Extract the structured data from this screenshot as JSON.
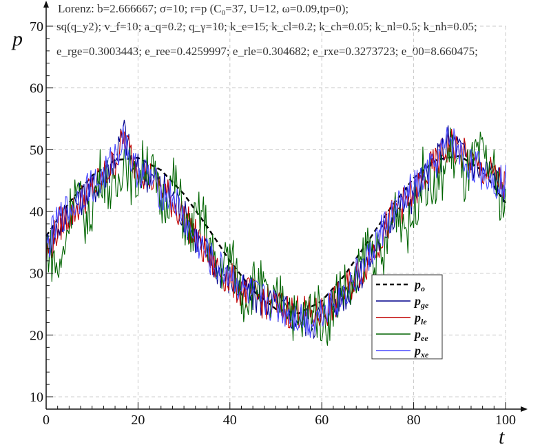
{
  "header": {
    "line1": "Lorenz: b=2.666667; σ=10; r=p (C",
    "line1_sub": "0",
    "line1_rest": "=37, U=12, ω=0.09,tp=0);",
    "line2": " sq(q_y2); v_f=10; a_q=0.2; q_γ=10; k_e=15; k_cl=0.2; k_ch=0.05; k_nl=0.5; k_nh=0.05;",
    "line3": "e_rge=0.3003443; e_ree=0.4259997; e_rle=0.304682; e_rxe=0.3273723; e_00=8.660475;"
  },
  "chart_data": {
    "type": "line",
    "title": "",
    "xlabel": "t",
    "ylabel": "p",
    "xlim": [
      0,
      100
    ],
    "ylim": [
      8,
      70
    ],
    "xticks": [
      0,
      20,
      40,
      60,
      80,
      100
    ],
    "yticks": [
      10,
      20,
      30,
      40,
      50,
      60,
      70
    ],
    "grid": true,
    "legend_position": "lower-right",
    "series": [
      {
        "name": "p_o",
        "color": "#000000",
        "style": "dashed",
        "x": [
          0,
          5,
          10,
          15,
          20,
          25,
          30,
          35,
          40,
          45,
          50,
          55,
          60,
          65,
          70,
          75,
          80,
          85,
          90,
          95,
          100
        ],
        "y": [
          36,
          41.4,
          45.8,
          48.3,
          48.7,
          46.7,
          42.8,
          37.6,
          32.0,
          27.2,
          24.2,
          23.5,
          25.5,
          29.7,
          35.1,
          40.6,
          45.4,
          48.4,
          49.0,
          46.6,
          41.4
        ]
      },
      {
        "name": "p_ge",
        "color": "#00008b",
        "style": "solid",
        "x": [
          0,
          3,
          6,
          9,
          12,
          15,
          17,
          19,
          22,
          25,
          28,
          31,
          34,
          37,
          40,
          43,
          46,
          49,
          52,
          55,
          58,
          61,
          64,
          67,
          70,
          73,
          76,
          79,
          82,
          85,
          88,
          91,
          94,
          97,
          100
        ],
        "y": [
          34,
          38,
          41,
          43,
          45,
          49,
          53,
          47,
          46,
          44,
          42,
          38,
          34,
          31,
          29,
          27,
          26,
          25,
          24,
          23,
          22,
          24,
          26,
          28,
          32,
          36,
          40,
          42,
          45,
          48,
          52,
          49,
          47,
          46,
          44
        ]
      },
      {
        "name": "p_le",
        "color": "#c00000",
        "style": "solid",
        "x": [
          0,
          3,
          6,
          9,
          12,
          15,
          17,
          19,
          22,
          25,
          28,
          31,
          34,
          37,
          40,
          43,
          46,
          49,
          52,
          55,
          58,
          61,
          64,
          67,
          70,
          73,
          76,
          79,
          82,
          85,
          88,
          91,
          94,
          97,
          100
        ],
        "y": [
          33,
          38,
          40,
          43,
          45,
          48,
          52,
          48,
          46,
          44,
          41,
          38,
          34,
          31,
          29,
          27,
          26,
          25,
          24,
          24,
          23,
          24,
          26,
          29,
          32,
          36,
          40,
          42,
          45,
          48,
          51,
          49,
          47,
          46,
          44
        ]
      },
      {
        "name": "p_ee",
        "color": "#006400",
        "style": "solid",
        "x": [
          0,
          3,
          6,
          9,
          12,
          15,
          17,
          19,
          22,
          25,
          28,
          31,
          34,
          37,
          40,
          43,
          46,
          49,
          52,
          55,
          58,
          61,
          64,
          67,
          70,
          73,
          76,
          79,
          82,
          85,
          88,
          91,
          94,
          97,
          100
        ],
        "y": [
          35,
          30,
          44,
          38,
          47,
          42,
          50,
          44,
          49,
          41,
          45,
          36,
          40,
          30,
          33,
          26,
          29,
          24,
          27,
          21,
          25,
          22,
          28,
          27,
          35,
          31,
          41,
          37,
          46,
          43,
          50,
          45,
          49,
          47,
          40
        ]
      },
      {
        "name": "p_xe",
        "color": "#4a4aff",
        "style": "solid",
        "x": [
          0,
          3,
          6,
          9,
          12,
          15,
          17,
          19,
          22,
          25,
          28,
          31,
          34,
          37,
          40,
          43,
          46,
          49,
          52,
          55,
          58,
          61,
          64,
          67,
          70,
          73,
          76,
          79,
          82,
          85,
          88,
          91,
          94,
          97,
          100
        ],
        "y": [
          34,
          39,
          41,
          44,
          45,
          49,
          52,
          47,
          46,
          43,
          42,
          37,
          34,
          31,
          30,
          27,
          26,
          25,
          24,
          23,
          22,
          25,
          26,
          29,
          32,
          37,
          40,
          43,
          45,
          48,
          52,
          48,
          47,
          45,
          45
        ]
      }
    ]
  }
}
